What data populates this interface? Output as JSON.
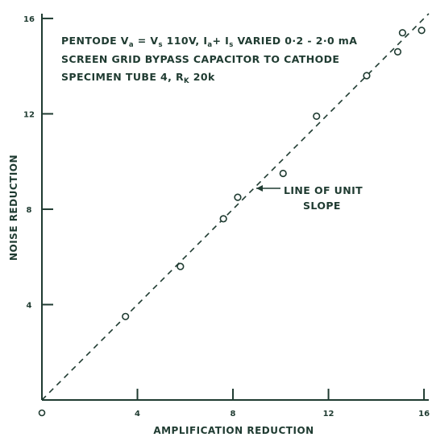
{
  "chart_data": {
    "type": "scatter",
    "xlabel": "AMPLIFICATION REDUCTION",
    "ylabel": "NOISE REDUCTION",
    "xlim": [
      0,
      16.2
    ],
    "ylim": [
      0,
      16.2
    ],
    "x_ticks": [
      0,
      4,
      8,
      12,
      16
    ],
    "y_ticks": [
      4,
      8,
      12,
      16
    ],
    "x_tick_labels": [
      "0",
      "4",
      "8",
      "12",
      "16"
    ],
    "y_tick_labels": [
      "4",
      "8",
      "12",
      "16"
    ],
    "grid": false,
    "series": [
      {
        "marker": "open-circle",
        "x": [
          3.5,
          5.8,
          7.6,
          8.2,
          10.1,
          11.5,
          13.6,
          14.9,
          15.1,
          15.9
        ],
        "y": [
          3.5,
          5.6,
          7.6,
          8.5,
          9.5,
          11.9,
          13.6,
          14.6,
          15.4,
          15.5
        ]
      }
    ],
    "reference_line": {
      "label_lines": [
        "LINE OF UNIT",
        "SLOPE"
      ],
      "style": "dashed",
      "x": [
        0,
        16.2
      ],
      "y": [
        0,
        16.2
      ]
    },
    "annotation": {
      "line1": {
        "a": "PENTODE  V",
        "a_sub": "a",
        "b": " = V",
        "b_sub": "s",
        "c": " 110V,  I",
        "c_sub": "a",
        "d": "+ I",
        "d_sub": "s",
        "e": " VARIED  0·2 - 2·0 mA"
      },
      "line2": "SCREEN GRID BYPASS CAPACITOR TO CATHODE",
      "line3": {
        "a": "SPECIMEN TUBE 4,  R",
        "a_sub": "K",
        "b": " 20k"
      }
    }
  },
  "colors": {
    "ink": "#1f3b31",
    "background": "#ffffff"
  }
}
